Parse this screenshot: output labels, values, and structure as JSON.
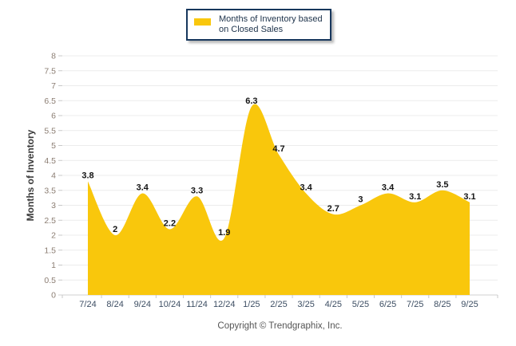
{
  "legend": {
    "label": "Months of Inventory based on Closed Sales"
  },
  "footer": {
    "copyright": "Copyright © Trendgraphix, Inc."
  },
  "chart_data": {
    "type": "area",
    "title": "Months of Inventory based on Closed Sales",
    "categories": [
      "7/24",
      "8/24",
      "9/24",
      "10/24",
      "11/24",
      "12/24",
      "1/25",
      "2/25",
      "3/25",
      "4/25",
      "5/25",
      "6/25",
      "7/25",
      "8/25",
      "9/25"
    ],
    "series": [
      {
        "name": "Months of Inventory based on Closed Sales",
        "values": [
          3.8,
          2,
          3.4,
          2.2,
          3.3,
          1.9,
          6.3,
          4.7,
          3.4,
          2.7,
          3,
          3.4,
          3.1,
          3.5,
          3.1
        ]
      }
    ],
    "xlabel": "",
    "ylabel": "Months of Inventory",
    "ylim": [
      0,
      8
    ],
    "ytick_step": 0.5,
    "grid": true,
    "legend_position": "top-center",
    "value_labels_shown": true,
    "colors": {
      "area": "#F9C70C",
      "grid": "#ececec",
      "axis": "#d2d2d2",
      "tick": "#c8c8c8",
      "ytick_label": "#8b7d72",
      "xtick_label": "#3d4e63",
      "value_label": "#141414",
      "legend_border": "#17375d",
      "legend_text": "#20354d",
      "footer_text": "#555555"
    }
  }
}
